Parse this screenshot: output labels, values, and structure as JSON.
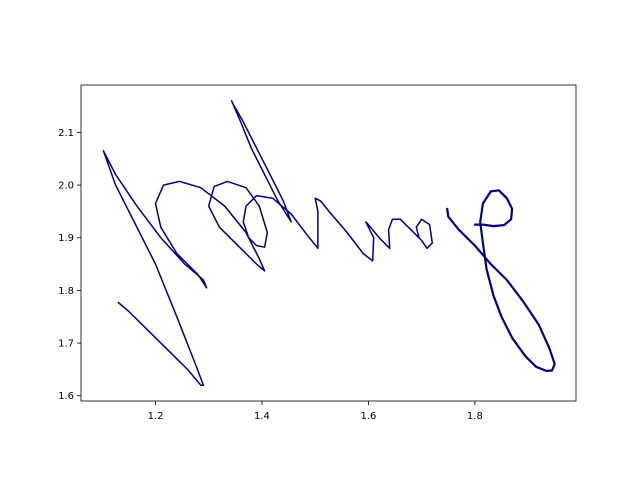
{
  "chart_data": {
    "type": "line",
    "title": "",
    "xlabel": "",
    "ylabel": "",
    "xlim": [
      1.06,
      1.99
    ],
    "ylim": [
      1.59,
      2.19
    ],
    "x_ticks": [
      {
        "value": 1.2,
        "label": "1.2"
      },
      {
        "value": 1.4,
        "label": "1.4"
      },
      {
        "value": 1.6,
        "label": "1.6"
      },
      {
        "value": 1.8,
        "label": "1.8"
      }
    ],
    "y_ticks": [
      {
        "value": 1.6,
        "label": "1.6"
      },
      {
        "value": 1.7,
        "label": "1.7"
      },
      {
        "value": 1.8,
        "label": "1.8"
      },
      {
        "value": 1.9,
        "label": "1.9"
      },
      {
        "value": 2.0,
        "label": "2.0"
      },
      {
        "value": 2.1,
        "label": "2.1"
      }
    ],
    "grid": false,
    "legend": "none",
    "series": [
      {
        "color": "#00008b",
        "points": [
          [
            1.13,
            1.777
          ],
          [
            1.15,
            1.76
          ],
          [
            1.18,
            1.73
          ],
          [
            1.22,
            1.69
          ],
          [
            1.26,
            1.65
          ],
          [
            1.285,
            1.62
          ],
          [
            1.29,
            1.62
          ],
          [
            1.275,
            1.66
          ],
          [
            1.24,
            1.75
          ],
          [
            1.2,
            1.85
          ],
          [
            1.16,
            1.93
          ],
          [
            1.125,
            2.0
          ],
          [
            1.102,
            2.065
          ],
          [
            1.125,
            2.02
          ],
          [
            1.165,
            1.96
          ],
          [
            1.21,
            1.9
          ],
          [
            1.255,
            1.85
          ],
          [
            1.29,
            1.82
          ],
          [
            1.296,
            1.805
          ],
          [
            1.28,
            1.83
          ],
          [
            1.24,
            1.87
          ],
          [
            1.21,
            1.92
          ],
          [
            1.2,
            1.965
          ],
          [
            1.215,
            2.0
          ],
          [
            1.245,
            2.007
          ],
          [
            1.285,
            1.995
          ],
          [
            1.33,
            1.96
          ],
          [
            1.37,
            1.91
          ],
          [
            1.395,
            1.86
          ],
          [
            1.405,
            1.837
          ],
          [
            1.39,
            1.85
          ],
          [
            1.36,
            1.88
          ],
          [
            1.32,
            1.92
          ],
          [
            1.3,
            1.96
          ],
          [
            1.31,
            1.997
          ],
          [
            1.335,
            2.007
          ],
          [
            1.37,
            1.995
          ],
          [
            1.395,
            1.96
          ],
          [
            1.41,
            1.91
          ],
          [
            1.405,
            1.882
          ],
          [
            1.39,
            1.885
          ],
          [
            1.375,
            1.9
          ],
          [
            1.365,
            1.93
          ],
          [
            1.37,
            1.96
          ],
          [
            1.39,
            1.98
          ],
          [
            1.42,
            1.975
          ],
          [
            1.455,
            1.945
          ],
          [
            1.485,
            1.905
          ],
          [
            1.505,
            1.88
          ],
          [
            1.505,
            1.95
          ],
          [
            1.5,
            1.975
          ],
          [
            1.51,
            1.97
          ],
          [
            1.53,
            1.945
          ],
          [
            1.56,
            1.91
          ],
          [
            1.59,
            1.87
          ],
          [
            1.608,
            1.856
          ],
          [
            1.61,
            1.9
          ],
          [
            1.595,
            1.93
          ],
          [
            1.6,
            1.925
          ],
          [
            1.62,
            1.9
          ],
          [
            1.64,
            1.88
          ],
          [
            1.638,
            1.915
          ],
          [
            1.645,
            1.935
          ],
          [
            1.66,
            1.935
          ],
          [
            1.68,
            1.915
          ],
          [
            1.7,
            1.895
          ],
          [
            1.71,
            1.88
          ],
          [
            1.72,
            1.89
          ],
          [
            1.715,
            1.925
          ],
          [
            1.7,
            1.935
          ],
          [
            1.69,
            1.92
          ],
          [
            1.695,
            1.9
          ]
        ]
      },
      {
        "color": "#00008b",
        "points": [
          [
            1.343,
            2.16
          ],
          [
            1.36,
            2.12
          ],
          [
            1.38,
            2.07
          ],
          [
            1.405,
            2.02
          ],
          [
            1.43,
            1.97
          ],
          [
            1.455,
            1.93
          ],
          [
            1.44,
            1.97
          ],
          [
            1.415,
            2.02
          ],
          [
            1.39,
            2.07
          ],
          [
            1.365,
            2.12
          ],
          [
            1.345,
            2.155
          ]
        ]
      },
      {
        "color": "#00008b",
        "points": [
          [
            1.748,
            1.955
          ],
          [
            1.75,
            1.94
          ],
          [
            1.77,
            1.915
          ],
          [
            1.8,
            1.885
          ],
          [
            1.83,
            1.85
          ],
          [
            1.86,
            1.82
          ],
          [
            1.89,
            1.78
          ],
          [
            1.92,
            1.735
          ],
          [
            1.94,
            1.69
          ],
          [
            1.95,
            1.66
          ],
          [
            1.945,
            1.648
          ],
          [
            1.935,
            1.647
          ],
          [
            1.915,
            1.655
          ],
          [
            1.895,
            1.675
          ],
          [
            1.87,
            1.71
          ],
          [
            1.85,
            1.75
          ],
          [
            1.835,
            1.79
          ],
          [
            1.822,
            1.84
          ],
          [
            1.815,
            1.89
          ],
          [
            1.81,
            1.93
          ],
          [
            1.815,
            1.965
          ],
          [
            1.83,
            1.988
          ],
          [
            1.845,
            1.99
          ],
          [
            1.86,
            1.975
          ],
          [
            1.87,
            1.955
          ],
          [
            1.868,
            1.935
          ],
          [
            1.855,
            1.924
          ],
          [
            1.835,
            1.922
          ],
          [
            1.815,
            1.925
          ],
          [
            1.8,
            1.925
          ]
        ]
      }
    ]
  }
}
